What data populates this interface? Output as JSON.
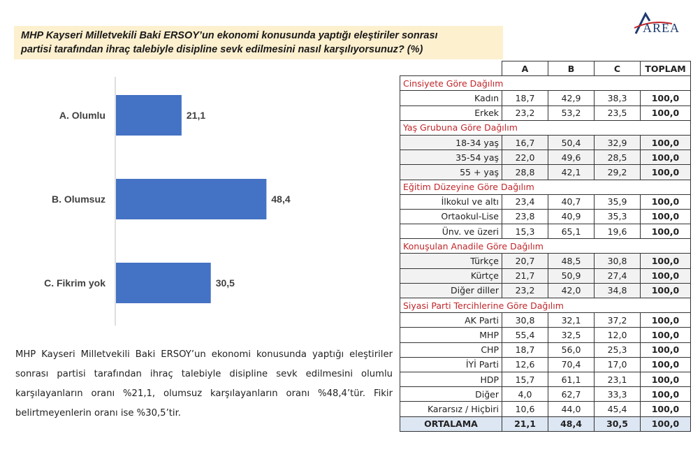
{
  "header": {
    "question_line1": "MHP Kayseri Milletvekili Baki ERSOY’un ekonomi konusunda yaptığı eleştiriler sonrası",
    "question_line2": "partisi tarafından ihraç talebiyle disipline sevk edilmesini nasıl karşılıyorsunuz? (%)",
    "logo_text": "AREA"
  },
  "chart_data": {
    "type": "bar",
    "orientation": "horizontal",
    "categories": [
      "A. Olumlu",
      "B. Olumsuz",
      "C. Fikrim yok"
    ],
    "values": [
      21.1,
      48.4,
      30.5
    ],
    "value_labels": [
      "21,1",
      "48,4",
      "30,5"
    ],
    "bar_color": "#4472c4",
    "xlim": [
      0,
      100
    ],
    "grid": false,
    "legend": "none"
  },
  "summary": "MHP Kayseri Milletvekili Baki ERSOY’un ekonomi konusunda yaptığı eleştiriler sonrası partisi tarafından ihraç talebiyle disipline sevk edilmesini olumlu karşılayanların oranı %21,1, olumsuz karşılayanların oranı %48,4’tür. Fikir belirtmeyenlerin oranı ise %30,5’tir.",
  "table": {
    "columns": [
      "A",
      "B",
      "C",
      "TOPLAM"
    ],
    "sections": [
      {
        "title": "Cinsiyete Göre Dağılım",
        "rows": [
          {
            "label": "Kadın",
            "a": "18,7",
            "b": "42,9",
            "c": "38,3",
            "t": "100,0"
          },
          {
            "label": "Erkek",
            "a": "23,2",
            "b": "53,2",
            "c": "23,5",
            "t": "100,0"
          }
        ]
      },
      {
        "title": "Yaş Grubuna Göre Dağılım",
        "rows": [
          {
            "label": "18-34 yaş",
            "a": "16,7",
            "b": "50,4",
            "c": "32,9",
            "t": "100,0"
          },
          {
            "label": "35-54 yaş",
            "a": "22,0",
            "b": "49,6",
            "c": "28,5",
            "t": "100,0"
          },
          {
            "label": "55 + yaş",
            "a": "28,8",
            "b": "42,1",
            "c": "29,2",
            "t": "100,0"
          }
        ]
      },
      {
        "title": "Eğitim Düzeyine Göre Dağılım",
        "rows": [
          {
            "label": "İlkokul ve altı",
            "a": "23,4",
            "b": "40,7",
            "c": "35,9",
            "t": "100,0"
          },
          {
            "label": "Ortaokul-Lise",
            "a": "23,8",
            "b": "40,9",
            "c": "35,3",
            "t": "100,0"
          },
          {
            "label": "Ünv. ve üzeri",
            "a": "15,3",
            "b": "65,1",
            "c": "19,6",
            "t": "100,0"
          }
        ]
      },
      {
        "title": "Konuşulan Anadile Göre Dağılım",
        "rows": [
          {
            "label": "Türkçe",
            "a": "20,7",
            "b": "48,5",
            "c": "30,8",
            "t": "100,0"
          },
          {
            "label": "Kürtçe",
            "a": "21,7",
            "b": "50,9",
            "c": "27,4",
            "t": "100,0"
          },
          {
            "label": "Diğer diller",
            "a": "23,2",
            "b": "42,0",
            "c": "34,8",
            "t": "100,0"
          }
        ]
      },
      {
        "title": "Siyasi Parti Tercihlerine Göre Dağılım",
        "rows": [
          {
            "label": "AK Parti",
            "a": "30,8",
            "b": "32,1",
            "c": "37,2",
            "t": "100,0"
          },
          {
            "label": "MHP",
            "a": "55,4",
            "b": "32,5",
            "c": "12,0",
            "t": "100,0"
          },
          {
            "label": "CHP",
            "a": "18,7",
            "b": "56,0",
            "c": "25,3",
            "t": "100,0"
          },
          {
            "label": "İYİ Parti",
            "a": "12,6",
            "b": "70,4",
            "c": "17,0",
            "t": "100,0"
          },
          {
            "label": "HDP",
            "a": "15,7",
            "b": "61,1",
            "c": "23,1",
            "t": "100,0"
          },
          {
            "label": "Diğer",
            "a": "4,0",
            "b": "62,7",
            "c": "33,3",
            "t": "100,0"
          },
          {
            "label": "Kararsız / Hiçbiri",
            "a": "10,6",
            "b": "44,0",
            "c": "45,4",
            "t": "100,0"
          }
        ]
      }
    ],
    "average": {
      "label": "ORTALAMA",
      "a": "21,1",
      "b": "48,4",
      "c": "30,5",
      "t": "100,0"
    }
  }
}
